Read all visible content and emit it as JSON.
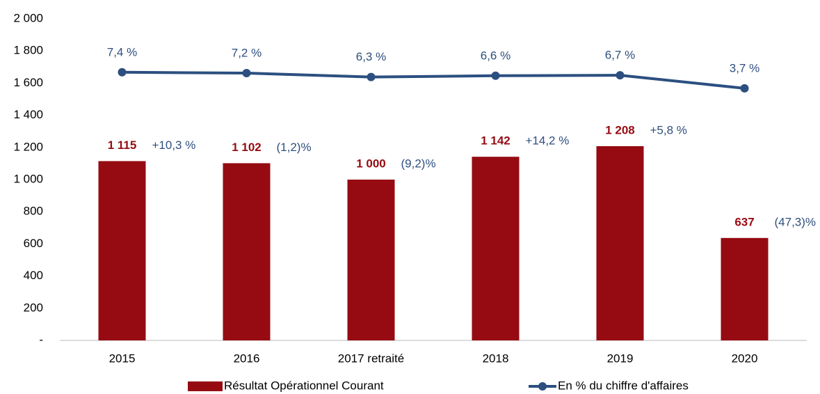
{
  "chart_data": {
    "type": "bar",
    "categories": [
      "2015",
      "2016",
      "2017 retraité",
      "2018",
      "2019",
      "2020"
    ],
    "series": [
      {
        "name": "Résultat Opérationnel Courant",
        "type": "bar",
        "color": "#960b12",
        "values": [
          1115,
          1102,
          1000,
          1142,
          1208,
          637
        ],
        "value_labels": [
          "1 115",
          "1 102",
          "1 000",
          "1 142",
          "1 208",
          "637"
        ]
      },
      {
        "name": "En % du chiffre d'affaires",
        "type": "line",
        "axis": "y2",
        "color": "#2c4f80",
        "values": [
          7.4,
          7.2,
          6.3,
          6.6,
          6.7,
          3.7
        ],
        "value_labels": [
          "7,4 %",
          "7,2 %",
          "6,3 %",
          "6,6 %",
          "6,7 %",
          "3,7 %"
        ]
      }
    ],
    "annotations": [
      "+10,3 %",
      "(1,2)%",
      "(9,2)%",
      "+14,2 %",
      "+5,8 %",
      "(47,3)%"
    ],
    "ylim": [
      0,
      2000
    ],
    "yticks": [
      {
        "value": 0,
        "label": "-"
      },
      200,
      400,
      600,
      800,
      {
        "value": 1000,
        "label": "1 000"
      },
      {
        "value": 1200,
        "label": "1 200"
      },
      {
        "value": 1400,
        "label": "1 400"
      },
      {
        "value": 1600,
        "label": "1 600"
      },
      {
        "value": 1800,
        "label": "1 800"
      },
      {
        "value": 2000,
        "label": "2 000"
      }
    ],
    "y2lim": [
      -54.3,
      19.7
    ],
    "grid": false,
    "legend": "bottom"
  }
}
